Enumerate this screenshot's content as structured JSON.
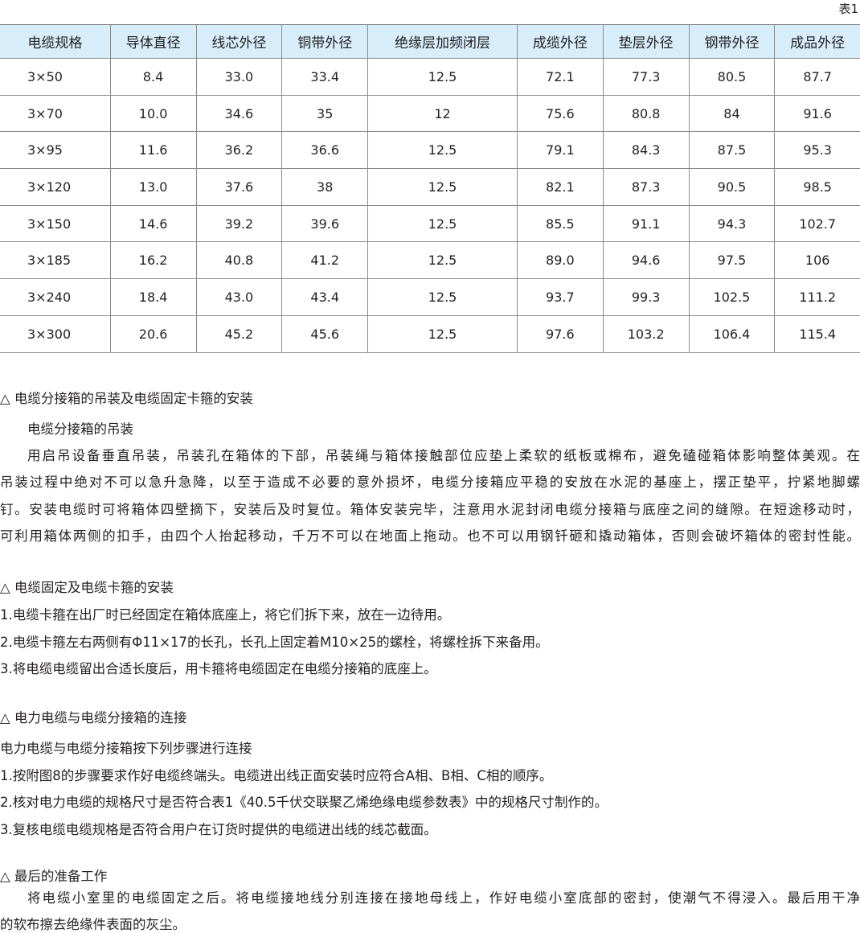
{
  "caption": "表1",
  "table": {
    "headers": [
      "电缆规格",
      "导体直径",
      "线芯外径",
      "铜带外径",
      "绝缘层加频闭层",
      "成缆外径",
      "垫层外径",
      "钢带外径",
      "成品外径"
    ],
    "rows": [
      [
        "3×50",
        "8.4",
        "33.0",
        "33.4",
        "12.5",
        "72.1",
        "77.3",
        "80.5",
        "87.7"
      ],
      [
        "3×70",
        "10.0",
        "34.6",
        "35",
        "12",
        "75.6",
        "80.8",
        "84",
        "91.6"
      ],
      [
        "3×95",
        "11.6",
        "36.2",
        "36.6",
        "12.5",
        "79.1",
        "84.3",
        "87.5",
        "95.3"
      ],
      [
        "3×120",
        "13.0",
        "37.6",
        "38",
        "12.5",
        "82.1",
        "87.3",
        "90.5",
        "98.5"
      ],
      [
        "3×150",
        "14.6",
        "39.2",
        "39.6",
        "12.5",
        "85.5",
        "91.1",
        "94.3",
        "102.7"
      ],
      [
        "3×185",
        "16.2",
        "40.8",
        "41.2",
        "12.5",
        "89.0",
        "94.6",
        "97.5",
        "106"
      ],
      [
        "3×240",
        "18.4",
        "43.0",
        "43.4",
        "12.5",
        "93.7",
        "99.3",
        "102.5",
        "111.2"
      ],
      [
        "3×300",
        "20.6",
        "45.2",
        "45.6",
        "12.5",
        "97.6",
        "103.2",
        "106.4",
        "115.4"
      ]
    ]
  },
  "sections": [
    {
      "heading": "△ 电缆分接箱的吊装及电缆固定卡箍的安装",
      "sub": "电缆分接箱的吊装",
      "lines": [
        "用启吊设备垂直吊装，吊装孔在箱体的下部，吊装绳与箱体接触部位应垫上柔软的纸板或棉布，避免磕碰箱体影响整体美观。在",
        "吊装过程中绝对不可以急升急降，以至于造成不必要的意外损坏，电缆分接箱应平稳的安放在水泥的基座上，摆正垫平，拧紧地脚螺",
        "钉。安装电缆时可将箱体四壁摘下，安装后及时复位。箱体安装完毕，注意用水泥封闭电缆分接箱与底座之间的缝隙。在短途移动时，",
        "可利用箱体两侧的扣手，由四个人抬起移动，千万不可以在地面上拖动。也不可以用钢钎砸和撬动箱体，否则会破坏箱体的密封性能。"
      ]
    },
    {
      "heading": "△ 电缆固定及电缆卡箍的安装",
      "lines": [
        "1.电缆卡箍在出厂时已经固定在箱体底座上，将它们拆下来，放在一边待用。",
        "2.电缆卡箍左右两侧有Φ11×17的长孔，长孔上固定着M10×25的螺栓，将螺栓拆下来备用。",
        "3.将电缆电缆留出合适长度后，用卡箍将电缆固定在电缆分接箱的底座上。"
      ]
    },
    {
      "heading": "△ 电力电缆与电缆分接箱的连接",
      "lines": [
        "电力电缆与电缆分接箱按下列步骤进行连接",
        "1.按附图8的步骤要求作好电缆终端头。电缆进出线正面安装时应符合A相、B相、C相的顺序。",
        "2.核对电力电缆的规格尺寸是否符合表1《40.5千伏交联聚乙烯绝缘电缆参数表》中的规格尺寸制作的。",
        "3.复核电缆电缆规格是否符合用户在订货时提供的电缆进出线的线芯截面。"
      ]
    },
    {
      "heading": "△ 最后的准备工作",
      "lines": [
        "将电缆小室里的电缆固定之后。将电缆接地线分别连接在接地母线上，作好电缆小室底部的密封，使潮气不得浸入。最后用干净",
        "的软布擦去绝缘件表面的灰尘。"
      ]
    }
  ]
}
